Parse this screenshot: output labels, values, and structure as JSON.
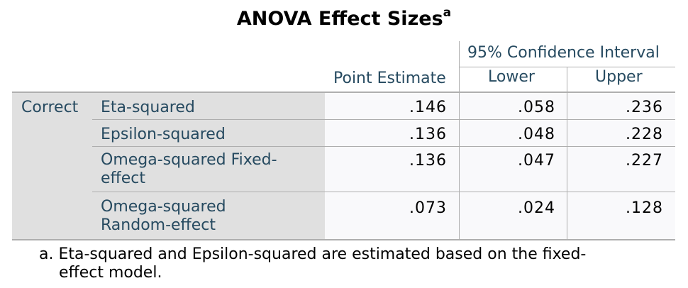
{
  "title": "ANOVA Effect Sizes",
  "title_superscript": "a",
  "header": {
    "ci_group": "95% Confidence Interval",
    "point_estimate": "Point Estimate",
    "lower": "Lower",
    "upper": "Upper"
  },
  "group_label": "Correct",
  "rows": [
    {
      "label_line1": "Eta-squared",
      "label_line2": "",
      "point": ".146",
      "lower": ".058",
      "upper": ".236"
    },
    {
      "label_line1": "Epsilon-squared",
      "label_line2": "",
      "point": ".136",
      "lower": ".048",
      "upper": ".228"
    },
    {
      "label_line1": "Omega-squared Fixed-",
      "label_line2": "effect",
      "point": ".136",
      "lower": ".047",
      "upper": ".227"
    },
    {
      "label_line1": "Omega-squared",
      "label_line2": "Random-effect",
      "point": ".073",
      "lower": ".024",
      "upper": ".128"
    }
  ],
  "footnote": {
    "line1": "a. Eta-squared and Epsilon-squared are estimated based on the fixed-",
    "line2": "effect model."
  },
  "colors": {
    "header_text": "#264a60",
    "label_bg": "#e0e0e0",
    "data_bg": "#f9f9fb",
    "rule": "#aeaeae"
  }
}
